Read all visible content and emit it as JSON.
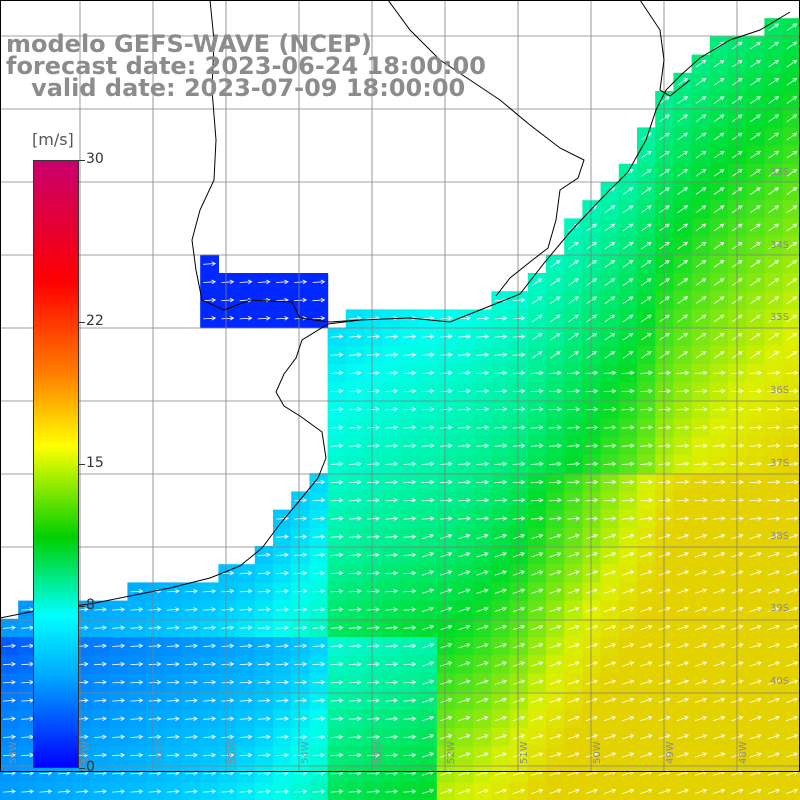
{
  "title": {
    "line1": "modelo GEFS-WAVE (NCEP)",
    "line2": "forecast date: 2023-06-24 18:00:00",
    "line3": "   valid date: 2023-07-09 18:00:00"
  },
  "colorbar": {
    "units": "[m/s]",
    "ticks": [
      {
        "label": "30",
        "value": 30
      },
      {
        "label": "22",
        "value": 22
      },
      {
        "label": "15",
        "value": 15
      },
      {
        "label": "8",
        "value": 8
      },
      {
        "label": "0",
        "value": 0
      }
    ],
    "range": [
      0,
      30
    ],
    "colors": [
      "#c8006e",
      "#ff0000",
      "#ff7d00",
      "#ffff00",
      "#00d000",
      "#00ffff",
      "#00a8ff",
      "#0000ff"
    ]
  },
  "map_labels": {
    "latitude": [
      "33S",
      "34S",
      "35S",
      "36S",
      "37S",
      "38S",
      "39S",
      "40S"
    ],
    "longitude": [
      "58W",
      "57W",
      "56W",
      "55W",
      "54W",
      "53W",
      "52W",
      "51W",
      "50W",
      "49W",
      "48W"
    ]
  },
  "field": {
    "variable": "wind speed",
    "arrow_color": "#ffffff",
    "land_color": "#ffffff",
    "grid_color": "#808080"
  }
}
